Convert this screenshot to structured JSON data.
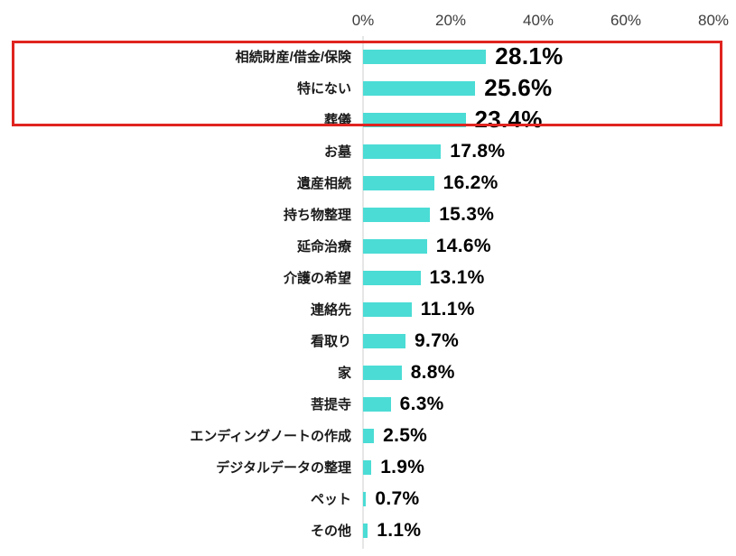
{
  "chart_data": {
    "type": "bar",
    "orientation": "horizontal",
    "title": "",
    "xlabel": "",
    "ylabel": "",
    "xlim": [
      0,
      80
    ],
    "x_ticks": [
      "0%",
      "20%",
      "40%",
      "60%",
      "80%"
    ],
    "x_tick_values": [
      0,
      20,
      40,
      60,
      80
    ],
    "grid": false,
    "legend": "none",
    "bar_color": "#4bdcd5",
    "categories": [
      "相続財産/借金/保険",
      "特にない",
      "葬儀",
      "お墓",
      "遺産相続",
      "持ち物整理",
      "延命治療",
      "介護の希望",
      "連絡先",
      "看取り",
      "家",
      "菩提寺",
      "エンディングノートの作成",
      "デジタルデータの整理",
      "ペット",
      "その他"
    ],
    "values": [
      28.1,
      25.6,
      23.4,
      17.8,
      16.2,
      15.3,
      14.6,
      13.1,
      11.1,
      9.7,
      8.8,
      6.3,
      2.5,
      1.9,
      0.7,
      1.1
    ],
    "value_labels": [
      "28.1%",
      "25.6%",
      "23.4%",
      "17.8%",
      "16.2%",
      "15.3%",
      "14.6%",
      "13.1%",
      "11.1%",
      "9.7%",
      "8.8%",
      "6.3%",
      "2.5%",
      "1.9%",
      "0.7%",
      "1.1%"
    ],
    "highlight_box": {
      "row_count": 3,
      "color": "#e02420",
      "rows_covered": [
        "相続財産/借金/保険",
        "特にない",
        "葬儀"
      ]
    }
  }
}
